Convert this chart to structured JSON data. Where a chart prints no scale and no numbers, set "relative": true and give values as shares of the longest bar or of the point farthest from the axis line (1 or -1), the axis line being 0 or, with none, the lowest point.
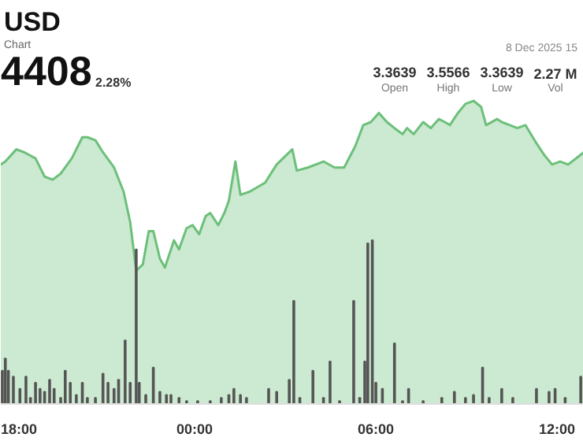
{
  "chart_data": {
    "type": "area",
    "relative": true,
    "grid": false,
    "annotations": [
      "USD",
      "Chart",
      "4408",
      "2.28%",
      "3.3639",
      "Open",
      "3.5566",
      "High",
      "3.3639",
      "Low",
      "2.27 M",
      "Vol",
      "8 Dec 2025 15"
    ],
    "xlim": [
      "2025-12-07T17:35",
      "2025-12-08T12:53"
    ],
    "xticks": [
      {
        "value": "2025-12-07T18:00",
        "label": "18:00"
      },
      {
        "value": "2025-12-08T00:00",
        "label": "00:00"
      },
      {
        "value": "2025-12-08T06:00",
        "label": "06:00"
      },
      {
        "value": "2025-12-08T12:00",
        "label": "12:00"
      }
    ],
    "series": [
      {
        "color": "#6cc07a",
        "x": [
          "2025-12-07T17:35",
          "2025-12-07T17:44",
          "2025-12-07T18:06",
          "2025-12-07T18:22",
          "2025-12-07T18:44",
          "2025-12-07T19:02",
          "2025-12-07T19:18",
          "2025-12-07T19:34",
          "2025-12-07T19:56",
          "2025-12-07T20:17",
          "2025-12-07T20:27",
          "2025-12-07T20:43",
          "2025-12-07T20:58",
          "2025-12-07T21:20",
          "2025-12-07T21:39",
          "2025-12-07T21:52",
          "2025-12-07T22:04",
          "2025-12-07T22:17",
          "2025-12-07T22:29",
          "2025-12-07T22:38",
          "2025-12-07T22:51",
          "2025-12-07T23:01",
          "2025-12-07T23:19",
          "2025-12-07T23:29",
          "2025-12-07T23:44",
          "2025-12-07T23:56",
          "2025-12-08T00:09",
          "2025-12-08T00:22",
          "2025-12-08T00:31",
          "2025-12-08T00:47",
          "2025-12-08T00:59",
          "2025-12-08T01:08",
          "2025-12-08T01:21",
          "2025-12-08T01:31",
          "2025-12-08T01:49",
          "2025-12-08T02:20",
          "2025-12-08T02:43",
          "2025-12-08T03:14",
          "2025-12-08T03:23",
          "2025-12-08T03:45",
          "2025-12-08T04:16",
          "2025-12-08T04:38",
          "2025-12-08T04:57",
          "2025-12-08T05:19",
          "2025-12-08T05:35",
          "2025-12-08T05:50",
          "2025-12-08T06:06",
          "2025-12-08T06:22",
          "2025-12-08T06:37",
          "2025-12-08T06:53",
          "2025-12-08T07:02",
          "2025-12-08T07:15",
          "2025-12-08T07:34",
          "2025-12-08T07:49",
          "2025-12-08T08:05",
          "2025-12-08T08:17",
          "2025-12-08T08:27",
          "2025-12-08T08:43",
          "2025-12-08T08:58",
          "2025-12-08T09:14",
          "2025-12-08T09:29",
          "2025-12-08T09:39",
          "2025-12-08T10:01",
          "2025-12-08T10:10",
          "2025-12-08T10:26",
          "2025-12-08T10:41",
          "2025-12-08T10:57",
          "2025-12-08T11:19",
          "2025-12-08T11:35",
          "2025-12-08T11:50",
          "2025-12-08T12:06",
          "2025-12-08T12:22",
          "2025-12-08T12:53"
        ],
        "values": [
          0.79,
          0.8,
          0.84,
          0.83,
          0.81,
          0.75,
          0.74,
          0.76,
          0.81,
          0.88,
          0.88,
          0.87,
          0.83,
          0.78,
          0.7,
          0.6,
          0.44,
          0.46,
          0.57,
          0.57,
          0.48,
          0.45,
          0.54,
          0.51,
          0.58,
          0.59,
          0.56,
          0.62,
          0.63,
          0.59,
          0.63,
          0.67,
          0.8,
          0.69,
          0.7,
          0.73,
          0.79,
          0.84,
          0.77,
          0.78,
          0.8,
          0.78,
          0.78,
          0.85,
          0.92,
          0.93,
          0.96,
          0.93,
          0.91,
          0.89,
          0.91,
          0.89,
          0.93,
          0.91,
          0.94,
          0.93,
          0.92,
          0.96,
          0.99,
          1,
          0.98,
          0.92,
          0.94,
          0.93,
          0.92,
          0.91,
          0.92,
          0.86,
          0.82,
          0.79,
          0.8,
          0.79,
          0.83
        ]
      },
      {
        "type": "bar",
        "color": "#555555",
        "x": [
          "2025-12-07T17:38",
          "2025-12-07T17:44",
          "2025-12-07T17:50",
          "2025-12-07T18:00",
          "2025-12-07T18:13",
          "2025-12-07T18:25",
          "2025-12-07T18:34",
          "2025-12-07T18:44",
          "2025-12-07T18:53",
          "2025-12-07T19:02",
          "2025-12-07T19:12",
          "2025-12-07T19:21",
          "2025-12-07T19:34",
          "2025-12-07T19:43",
          "2025-12-07T19:53",
          "2025-12-07T20:05",
          "2025-12-07T20:17",
          "2025-12-07T20:27",
          "2025-12-07T20:43",
          "2025-12-07T20:58",
          "2025-12-07T21:08",
          "2025-12-07T21:20",
          "2025-12-07T21:29",
          "2025-12-07T21:42",
          "2025-12-07T21:52",
          "2025-12-07T22:04",
          "2025-12-07T22:10",
          "2025-12-07T22:23",
          "2025-12-07T22:38",
          "2025-12-07T22:51",
          "2025-12-07T23:04",
          "2025-12-07T23:13",
          "2025-12-07T23:29",
          "2025-12-07T23:44",
          "2025-12-08T00:06",
          "2025-12-08T00:31",
          "2025-12-08T00:53",
          "2025-12-08T01:08",
          "2025-12-08T01:18",
          "2025-12-08T01:31",
          "2025-12-08T01:43",
          "2025-12-08T02:27",
          "2025-12-08T02:43",
          "2025-12-08T03:08",
          "2025-12-08T03:17",
          "2025-12-08T03:29",
          "2025-12-08T03:55",
          "2025-12-08T04:16",
          "2025-12-08T04:29",
          "2025-12-08T04:48",
          "2025-12-08T05:16",
          "2025-12-08T05:28",
          "2025-12-08T05:38",
          "2025-12-08T05:44",
          "2025-12-08T05:53",
          "2025-12-08T06:00",
          "2025-12-08T06:13",
          "2025-12-08T06:37",
          "2025-12-08T06:53",
          "2025-12-08T07:05",
          "2025-12-08T07:34",
          "2025-12-08T08:11",
          "2025-12-08T08:36",
          "2025-12-08T08:58",
          "2025-12-08T09:14",
          "2025-12-08T09:32",
          "2025-12-08T09:45",
          "2025-12-08T10:10",
          "2025-12-08T10:32",
          "2025-12-08T11:19",
          "2025-12-08T11:44",
          "2025-12-08T11:56",
          "2025-12-08T12:16",
          "2025-12-08T12:47"
        ],
        "values": [
          0.11,
          0.15,
          0.11,
          0.09,
          0.05,
          0.09,
          0.02,
          0.07,
          0.05,
          0.04,
          0.08,
          0.05,
          0.02,
          0.11,
          0.07,
          0.03,
          0.07,
          0.02,
          0.02,
          0.1,
          0.07,
          0.05,
          0.08,
          0.21,
          0.07,
          0.51,
          0.07,
          0.03,
          0.12,
          0.04,
          0.03,
          0.03,
          0.02,
          0.01,
          0.01,
          0.01,
          0.02,
          0.03,
          0.05,
          0.03,
          0.02,
          0.05,
          0.04,
          0.08,
          0.34,
          0.02,
          0.11,
          0.02,
          0.14,
          0.01,
          0.34,
          0.02,
          0.14,
          0.53,
          0.54,
          0.07,
          0.05,
          0.2,
          0.01,
          0.05,
          0.01,
          0.02,
          0.04,
          0.02,
          0.03,
          0.12,
          0.02,
          0.05,
          0.02,
          0.05,
          0.04,
          0.05,
          0.02,
          0.09
        ]
      }
    ]
  }
}
